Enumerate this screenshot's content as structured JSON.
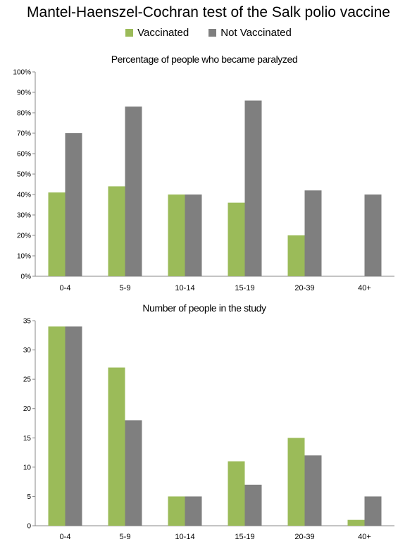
{
  "title": "Mantel-Haenszel-Cochran test of the Salk polio vaccine",
  "legend": [
    {
      "name": "Vaccinated",
      "color": "#9bbb59"
    },
    {
      "name": "Not Vaccinated",
      "color": "#7f7f7f"
    }
  ],
  "chart_data": [
    {
      "type": "bar",
      "title": "Percentage of people who became paralyzed",
      "categories": [
        "0-4",
        "5-9",
        "10-14",
        "15-19",
        "20-39",
        "40+"
      ],
      "series": [
        {
          "name": "Vaccinated",
          "values": [
            41,
            44,
            40,
            36,
            20,
            0
          ]
        },
        {
          "name": "Not Vaccinated",
          "values": [
            70,
            83,
            40,
            86,
            42,
            40
          ]
        }
      ],
      "ylim": [
        0,
        100
      ],
      "yticks": [
        "0%",
        "10%",
        "20%",
        "30%",
        "40%",
        "50%",
        "60%",
        "70%",
        "80%",
        "90%",
        "100%"
      ],
      "grid": false
    },
    {
      "type": "bar",
      "title": "Number of people in the study",
      "categories": [
        "0-4",
        "5-9",
        "10-14",
        "15-19",
        "20-39",
        "40+"
      ],
      "series": [
        {
          "name": "Vaccinated",
          "values": [
            34,
            27,
            5,
            11,
            15,
            1
          ]
        },
        {
          "name": "Not Vaccinated",
          "values": [
            34,
            18,
            5,
            7,
            12,
            5
          ]
        }
      ],
      "ylim": [
        0,
        35
      ],
      "yticks": [
        "0",
        "5",
        "10",
        "15",
        "20",
        "25",
        "30",
        "35"
      ],
      "grid": false
    }
  ]
}
